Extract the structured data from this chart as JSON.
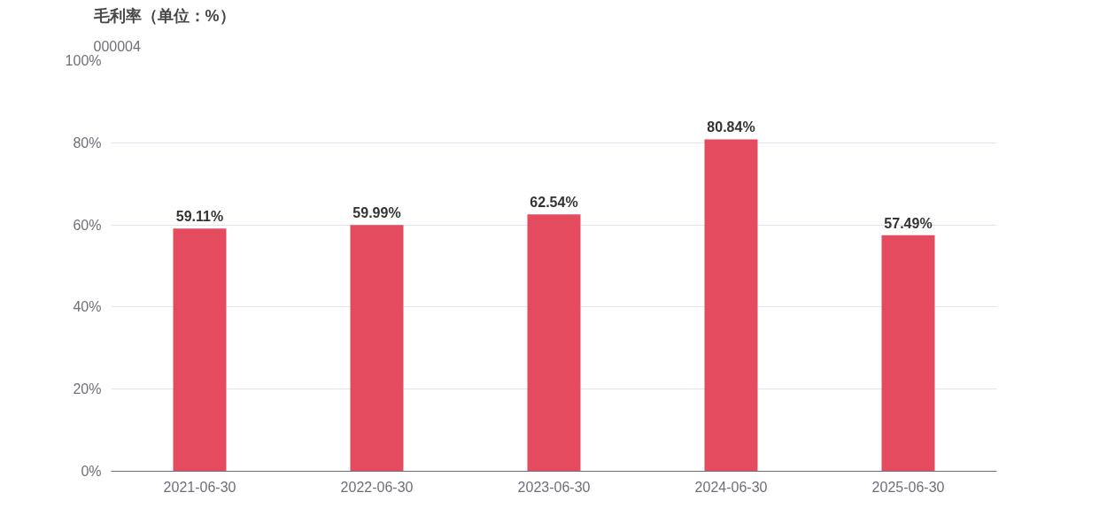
{
  "chart_data": {
    "type": "bar",
    "title": "毛利率（单位：%）",
    "subtitle": "000004",
    "categories": [
      "2021-06-30",
      "2022-06-30",
      "2023-06-30",
      "2024-06-30",
      "2025-06-30"
    ],
    "values": [
      59.11,
      59.99,
      62.54,
      80.84,
      57.49
    ],
    "value_labels": [
      "59.11%",
      "59.99%",
      "62.54%",
      "80.84%",
      "57.49%"
    ],
    "color": "#e54b5e",
    "ylim": [
      0,
      100
    ],
    "yticks": [
      {
        "value": 0,
        "label": "0%"
      },
      {
        "value": 20,
        "label": "20%"
      },
      {
        "value": 40,
        "label": "40%"
      },
      {
        "value": 60,
        "label": "60%"
      },
      {
        "value": 80,
        "label": "80%"
      },
      {
        "value": 100,
        "label": "100%"
      }
    ],
    "grid": "y"
  }
}
